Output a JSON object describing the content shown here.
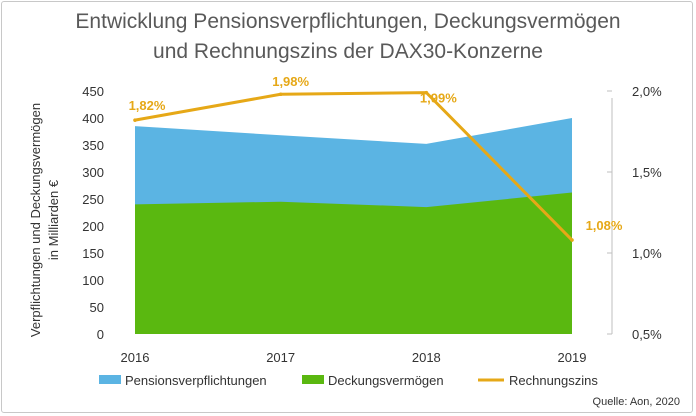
{
  "chart_data": {
    "type": "area",
    "title_line1": "Entwicklung Pensionsverpflichtungen, Deckungsvermögen",
    "title_line2": "und Rechnungszins der DAX30-Konzerne",
    "ylabel_line1": "Verpflichtungen und Deckungsvermögen",
    "ylabel_line2": "in Milliarden €",
    "categories": [
      "2016",
      "2017",
      "2018",
      "2019"
    ],
    "left_axis": {
      "ylim": [
        0,
        450
      ],
      "ticks": [
        "0",
        "50",
        "100",
        "150",
        "200",
        "250",
        "300",
        "350",
        "400",
        "450"
      ]
    },
    "right_axis": {
      "ylim": [
        0.5,
        2.0
      ],
      "ticks": [
        {
          "value": 0.5,
          "label": "0,5%"
        },
        {
          "value": 1.0,
          "label": "1,0%"
        },
        {
          "value": 1.5,
          "label": "1,5%"
        },
        {
          "value": 2.0,
          "label": "2,0%"
        }
      ]
    },
    "series": [
      {
        "name": "Pensionsverpflichtungen",
        "type": "area",
        "axis": "left",
        "color": "#5bb4e3",
        "values": [
          385,
          368,
          352,
          400
        ]
      },
      {
        "name": "Deckungsvermögen",
        "type": "area",
        "axis": "left",
        "color": "#5ab810",
        "values": [
          240,
          245,
          235,
          262
        ]
      },
      {
        "name": "Rechnungszins",
        "type": "line",
        "axis": "right",
        "color": "#e6a817",
        "values": [
          1.82,
          1.98,
          1.99,
          1.08
        ],
        "labels": [
          "1,82%",
          "1,98%",
          "1,99%",
          "1,08%"
        ]
      }
    ],
    "legend_position": "bottom",
    "grid": false
  },
  "source": "Quelle: Aon, 2020"
}
